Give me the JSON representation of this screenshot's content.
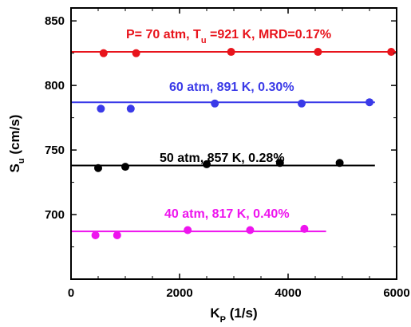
{
  "chart_data": {
    "type": "scatter",
    "xlabel": {
      "main": "K",
      "sub": "P",
      "rest": " (1/s)"
    },
    "ylabel": {
      "main": "S",
      "sub": "u",
      "rest": " (cm/s)"
    },
    "xlim": [
      0,
      6000
    ],
    "ylim": [
      650,
      860
    ],
    "x_ticks": [
      0,
      2000,
      4000,
      6000
    ],
    "x_tick_labels": [
      "0",
      "2000",
      "4000",
      "6000"
    ],
    "y_ticks": [
      700,
      750,
      800,
      850
    ],
    "y_tick_labels": [
      "700",
      "750",
      "800",
      "850"
    ],
    "grid": false,
    "legend": "none",
    "series": [
      {
        "label_parts": [
          "P= 70 atm, T",
          "u",
          " =921 K, MRD=0.17%"
        ],
        "color": "#e8141c",
        "x": [
          600,
          1200,
          2950,
          4550,
          5900
        ],
        "y": [
          825,
          825,
          826,
          826,
          826
        ],
        "fit": {
          "x": [
            0,
            6000
          ],
          "y": [
            826,
            826
          ]
        }
      },
      {
        "label_parts": [
          "60 atm, 891 K, 0.30%"
        ],
        "color": "#3a3ae8",
        "x": [
          550,
          1100,
          2650,
          4250,
          5500
        ],
        "y": [
          782,
          782,
          786,
          786,
          787
        ],
        "fit": {
          "x": [
            0,
            5600
          ],
          "y": [
            787,
            787
          ]
        }
      },
      {
        "label_parts": [
          "50 atm, 857 K, 0.28%"
        ],
        "color": "#000000",
        "x": [
          500,
          1000,
          2500,
          3850,
          4950
        ],
        "y": [
          736,
          737,
          739,
          740,
          740
        ],
        "fit": {
          "x": [
            0,
            5600
          ],
          "y": [
            738,
            738
          ]
        }
      },
      {
        "label_parts": [
          "40 atm, 817 K, 0.40%"
        ],
        "color": "#ee14ee",
        "x": [
          450,
          850,
          2150,
          3300,
          4300
        ],
        "y": [
          684,
          684,
          688,
          688,
          689
        ],
        "fit": {
          "x": [
            0,
            4700
          ],
          "y": [
            687,
            687
          ]
        }
      }
    ]
  }
}
